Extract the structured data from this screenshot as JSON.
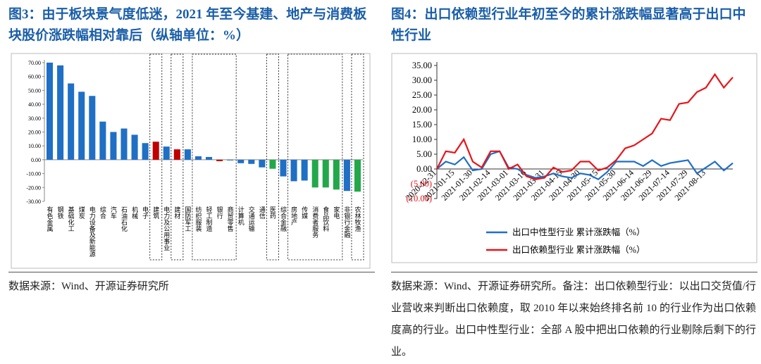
{
  "chart_data": [
    {
      "type": "bar",
      "title": "图3：由于板块景气度低迷，2021 年至今基建、地产与消费板块股价涨跌幅相对靠后（纵轴单位：%）",
      "source": "数据来源：Wind、开源证券研究所",
      "categories": [
        "有色金属",
        "钢铁",
        "基础化工",
        "煤炭",
        "电力设备及新能源",
        "综合",
        "汽车",
        "石油石化",
        "机械",
        "电子",
        "建筑",
        "电力及公用事业",
        "建材",
        "国防军工",
        "纺织服装",
        "轻工制造",
        "银行",
        "商贸零售",
        "计算机",
        "交通运输",
        "通信",
        "医药",
        "综合金融",
        "房地产",
        "传媒",
        "消费者服务",
        "食品饮料",
        "家电",
        "非银行金融",
        "农林牧渔"
      ],
      "values": [
        70,
        68,
        55,
        49,
        46,
        27.5,
        20,
        22.5,
        18,
        12,
        13,
        9.5,
        7.5,
        7.5,
        2.5,
        2,
        -1,
        -0.5,
        -2.5,
        -3,
        -5.5,
        -6.5,
        -12,
        -15.5,
        -15,
        -20,
        -20,
        -21.5,
        -22.5,
        -23
      ],
      "colors": [
        "#1f6fc5",
        "#1f6fc5",
        "#1f6fc5",
        "#1f6fc5",
        "#1f6fc5",
        "#1f6fc5",
        "#1f6fc5",
        "#1f6fc5",
        "#1f6fc5",
        "#1f6fc5",
        "#c00000",
        "#1f6fc5",
        "#c00000",
        "#1f6fc5",
        "#1f6fc5",
        "#1f6fc5",
        "#c00000",
        "#1f6fc5",
        "#1f6fc5",
        "#1f6fc5",
        "#1f6fc5",
        "#22a84a",
        "#1f6fc5",
        "#1f6fc5",
        "#1f6fc5",
        "#22a84a",
        "#22a84a",
        "#22a84a",
        "#1f6fc5",
        "#22a84a"
      ],
      "ylim": [
        -30,
        72
      ],
      "yticks": [
        {
          "value": -30,
          "label": "-30.00"
        },
        {
          "value": -20,
          "label": "-20.00"
        },
        {
          "value": -10,
          "label": "-10.00"
        },
        {
          "value": 0,
          "label": "0.00"
        },
        {
          "value": 10,
          "label": "10.00"
        },
        {
          "value": 20,
          "label": "20.00"
        },
        {
          "value": 30,
          "label": "30.00"
        },
        {
          "value": 40,
          "label": "40.00"
        },
        {
          "value": 50,
          "label": "50.00"
        },
        {
          "value": 60,
          "label": "60.00"
        },
        {
          "value": 70,
          "label": "70.00"
        }
      ],
      "grid": false
    },
    {
      "type": "line",
      "title": "图4：出口依赖型行业年初至今的累计涨跌幅显著高于出口中性行业",
      "source": "数据来源：Wind、开源证券研究所。备注：出口依赖型行业：以出口交货值/行业营收来判断出口依赖度，取 2010 年以来始终排名前 10 的行业作为出口依赖度高的行业。出口中性型行业：全部 A 股中把出口依赖的行业剔除后剩下的行业。",
      "categories": [
        "2020-12-31",
        null,
        "2021-01-15",
        null,
        "2021-01-30",
        null,
        "2021-02-14",
        null,
        "2021-03-01",
        null,
        "2021-03-16",
        null,
        "2021-03-31",
        null,
        "2021-04-15",
        null,
        "2021-04-30",
        null,
        "2021-05-15",
        null,
        "2021-05-30",
        null,
        "2021-06-14",
        null,
        "2021-06-29",
        null,
        "2021-07-14",
        null,
        "2021-07-29",
        null,
        "2021-08-13",
        null,
        null,
        null
      ],
      "series": [
        {
          "name": "出口中性型行业 累计涨跌幅（%）",
          "color": "#1f6fc5",
          "values": [
            0,
            2.5,
            1.5,
            4,
            -0.5,
            0,
            5,
            6,
            0.5,
            0,
            -2,
            -3,
            -2.5,
            -1.5,
            -2.5,
            -3,
            -1.5,
            -2,
            -3.5,
            -1,
            2.5,
            2.5,
            2.5,
            1,
            3,
            1,
            2,
            2.5,
            3,
            -1.5,
            0.5,
            2.5,
            -0.5,
            2
          ]
        },
        {
          "name": "出口依赖型行业 累计涨跌幅（%）",
          "color": "#e8141a",
          "values": [
            0,
            6,
            5.5,
            10,
            2.5,
            0.5,
            6,
            6,
            0,
            1.5,
            -2.5,
            -3.5,
            -3,
            0.5,
            -1,
            -0.5,
            2.5,
            2.5,
            -0.5,
            0.5,
            3,
            7,
            8,
            10,
            12,
            17,
            16.5,
            22,
            22.5,
            26,
            27.5,
            32,
            27.5,
            31
          ]
        }
      ],
      "ylim": [
        -10,
        35
      ],
      "yticks": [
        {
          "value": -10,
          "label": "(10.00)"
        },
        {
          "value": -5,
          "label": "(5.00)"
        },
        {
          "value": 0,
          "label": "0.00"
        },
        {
          "value": 5,
          "label": "5.00"
        },
        {
          "value": 10,
          "label": "10.00"
        },
        {
          "value": 15,
          "label": "15.00"
        },
        {
          "value": 20,
          "label": "20.00"
        },
        {
          "value": 25,
          "label": "25.00"
        },
        {
          "value": 30,
          "label": "30.00"
        },
        {
          "value": 35,
          "label": "35.00"
        }
      ],
      "grid": false
    }
  ]
}
